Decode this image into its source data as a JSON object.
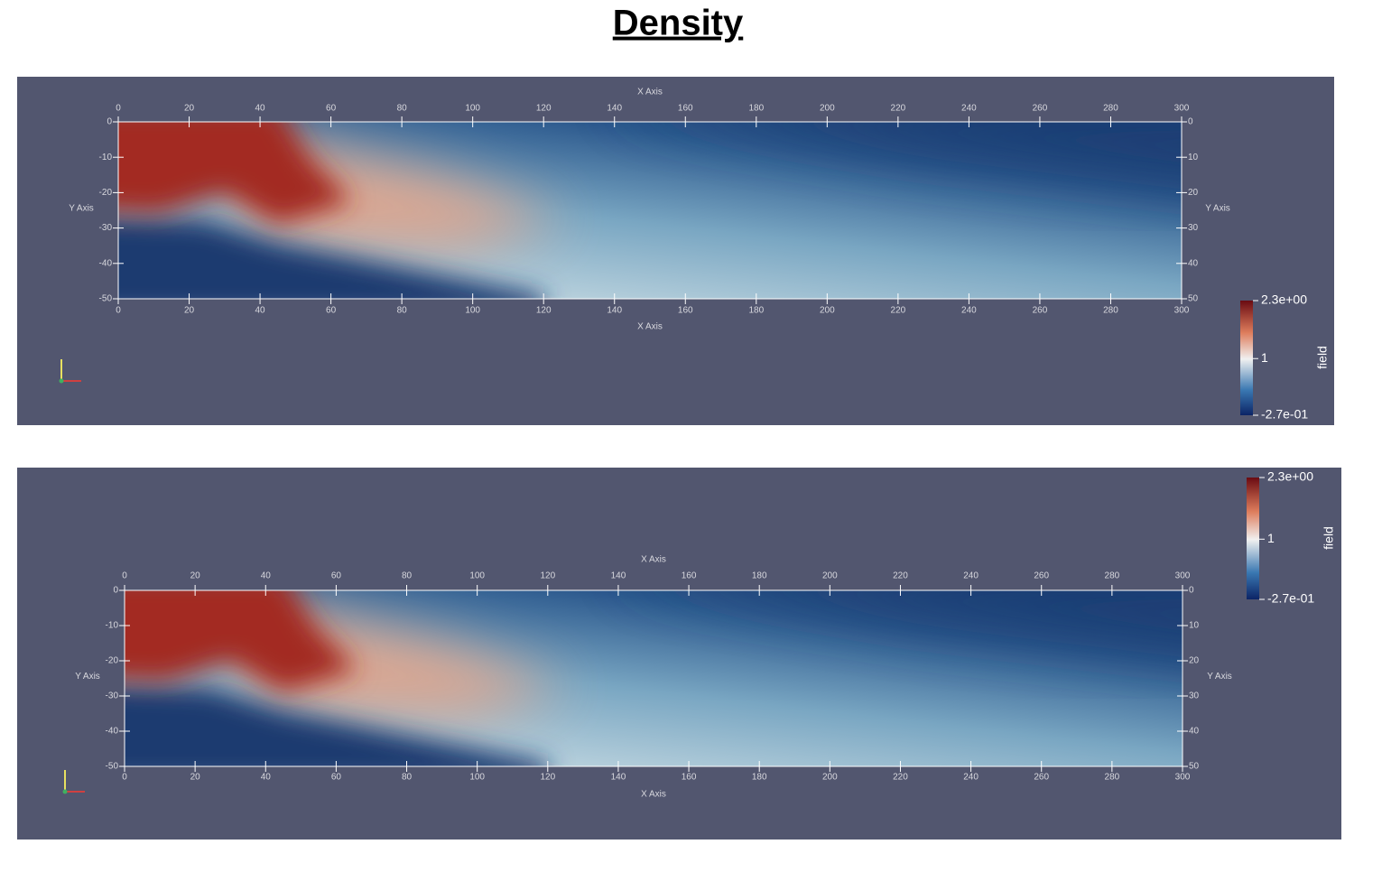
{
  "header": {
    "title": "Density"
  },
  "panels": [
    {
      "x_axis_label": "X Axis",
      "y_axis_label": "Y Axis",
      "xlim": [
        0,
        300
      ],
      "ylim": [
        -50,
        0
      ],
      "xticks": [
        0,
        20,
        40,
        60,
        80,
        100,
        120,
        140,
        160,
        180,
        200,
        220,
        240,
        260,
        280,
        300
      ],
      "yticks": [
        0,
        -10,
        -20,
        -30,
        -40,
        -50
      ],
      "yticks_right": [
        0,
        {
          "value": -10,
          "label": "10"
        },
        {
          "value": -20,
          "label": "20"
        },
        {
          "value": -30,
          "label": "30"
        },
        {
          "value": -40,
          "label": "40"
        },
        {
          "value": -50,
          "label": "50"
        }
      ],
      "colorbar": {
        "label": "field",
        "range": [
          -0.27,
          2.3
        ],
        "ticks": [
          {
            "value": 2.3,
            "label": "2.3e+00"
          },
          1,
          {
            "value": -0.27,
            "label": "-2.7e-01"
          }
        ]
      }
    },
    {
      "x_axis_label": "X Axis",
      "y_axis_label": "Y Axis",
      "xlim": [
        0,
        300
      ],
      "ylim": [
        -50,
        0
      ],
      "xticks": [
        0,
        20,
        40,
        60,
        80,
        100,
        120,
        140,
        160,
        180,
        200,
        220,
        240,
        260,
        280,
        300
      ],
      "yticks": [
        0,
        -10,
        -20,
        -30,
        -40,
        -50
      ],
      "yticks_right": [
        0,
        {
          "value": -10,
          "label": "10"
        },
        {
          "value": -20,
          "label": "20"
        },
        {
          "value": -30,
          "label": "30"
        },
        {
          "value": -40,
          "label": "40"
        },
        {
          "value": -50,
          "label": "50"
        }
      ],
      "colorbar": {
        "label": "field",
        "range": [
          -0.27,
          2.3
        ],
        "ticks": [
          {
            "value": 2.3,
            "label": "2.3e+00"
          },
          1,
          {
            "value": -0.27,
            "label": "-2.7e-01"
          }
        ]
      }
    }
  ]
}
